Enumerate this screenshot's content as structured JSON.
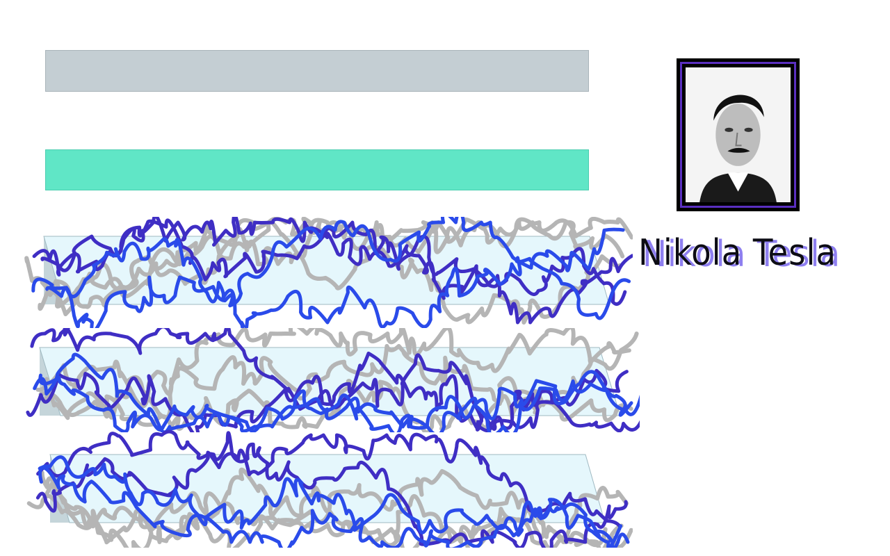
{
  "bars": [
    {
      "fill": "#c4ced3",
      "border": "#a9b4ba"
    },
    {
      "fill": "#60e6c6",
      "border": "#4bcdb0"
    }
  ],
  "captcha": {
    "panel_fill": "#e5f7fc",
    "panel_edge": "#9fb9c1",
    "scribble_colors": [
      "#b5b5b5",
      "#3f2ec4",
      "#2a4bea"
    ]
  },
  "portrait": {
    "frame_color": "#5a2fc0"
  },
  "name_label": "Nikola Tesla",
  "name_colors": {
    "main": "#0d0d14",
    "shadow": "#8e7ff0"
  }
}
